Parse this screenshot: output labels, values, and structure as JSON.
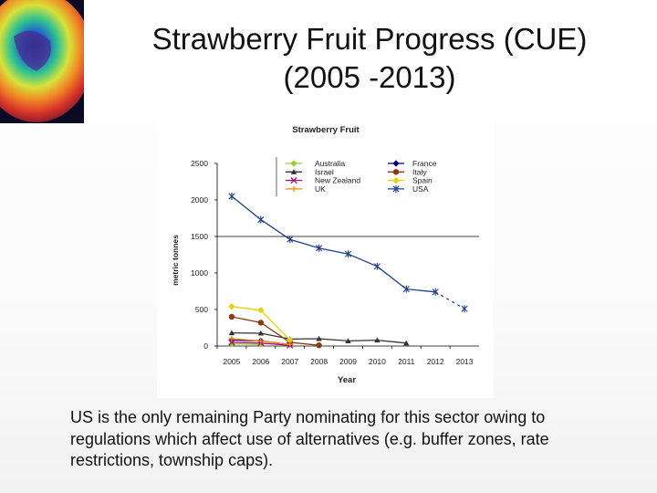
{
  "slide": {
    "title_line1": "Strawberry Fruit Progress (CUE)",
    "title_line2": "(2005 -2013)",
    "caption": "US is the only remaining Party nominating for this sector owing to regulations which affect use of alternatives (e.g. buffer zones, rate restrictions, township caps)."
  },
  "chart_data": {
    "type": "line",
    "title": "Strawberry Fruit",
    "xlabel": "Year",
    "ylabel": "metric tonnes",
    "categories": [
      "2005",
      "2006",
      "2007",
      "2008",
      "2009",
      "2010",
      "2011",
      "2012",
      "2013"
    ],
    "ylim": [
      0,
      2500
    ],
    "yticks": [
      0,
      500,
      1000,
      1500,
      2000,
      2500
    ],
    "grid": "horizontal line at 1500",
    "legend_position": "top",
    "series": [
      {
        "name": "Australia",
        "color": "#9acd32",
        "marker": "diamond",
        "values": [
          30,
          20,
          null,
          null,
          null,
          null,
          null,
          null,
          null
        ]
      },
      {
        "name": "France",
        "color": "#000080",
        "marker": "diamond",
        "values": [
          80,
          70,
          20,
          null,
          null,
          null,
          null,
          null,
          null
        ]
      },
      {
        "name": "Israel",
        "color": "#333333",
        "marker": "triangle",
        "values": [
          180,
          175,
          95,
          100,
          70,
          80,
          40,
          null,
          null
        ]
      },
      {
        "name": "Italy",
        "color": "#8b3a0e",
        "marker": "circle",
        "values": [
          400,
          320,
          50,
          10,
          null,
          null,
          null,
          null,
          null
        ]
      },
      {
        "name": "New Zealand",
        "color": "#aa1177",
        "marker": "x",
        "values": [
          50,
          40,
          10,
          null,
          null,
          null,
          null,
          null,
          null
        ]
      },
      {
        "name": "Spain",
        "color": "#e6d200",
        "marker": "diamond",
        "values": [
          540,
          490,
          80,
          null,
          null,
          null,
          null,
          null,
          null
        ]
      },
      {
        "name": "UK",
        "color": "#ff8800",
        "marker": "plus",
        "values": [
          100,
          70,
          20,
          null,
          null,
          null,
          null,
          null,
          null
        ]
      },
      {
        "name": "USA",
        "color": "#1f3f8f",
        "marker": "asterisk",
        "values": [
          2050,
          1730,
          1460,
          1340,
          1260,
          1090,
          780,
          740,
          510
        ]
      }
    ]
  }
}
